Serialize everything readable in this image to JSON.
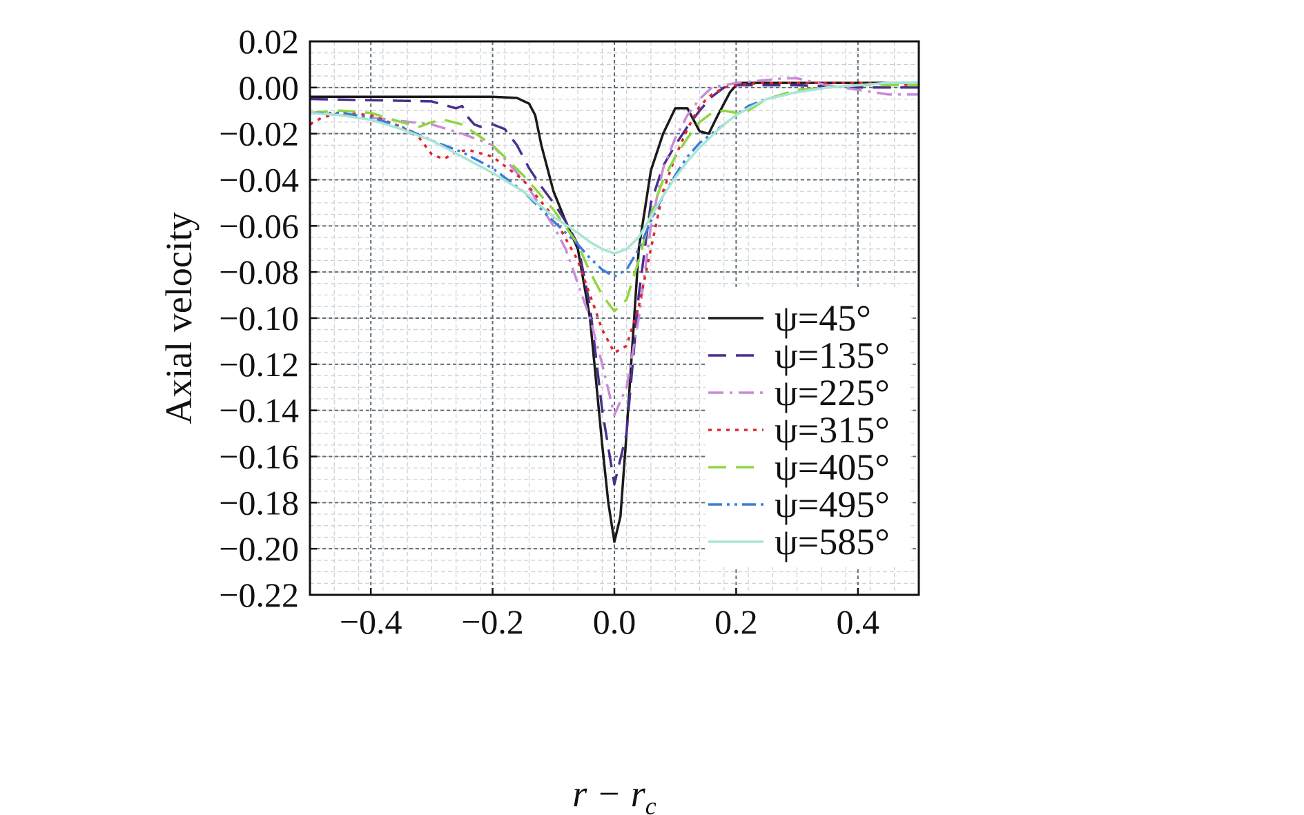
{
  "chart_data": {
    "type": "line",
    "title": "",
    "xlabel": "r − r",
    "xlabel_sub": "c",
    "ylabel": "Axial velocity",
    "xlim": [
      -0.5,
      0.5
    ],
    "ylim": [
      -0.22,
      0.02
    ],
    "grid": true,
    "minor_grid": true,
    "legend_position": "lower-right",
    "xticks": [
      -0.4,
      -0.2,
      0.0,
      0.2,
      0.4
    ],
    "xtick_labels": [
      "−0.4",
      "−0.2",
      "0.0",
      "0.2",
      "0.4"
    ],
    "yticks": [
      0.02,
      0.0,
      -0.02,
      -0.04,
      -0.06,
      -0.08,
      -0.1,
      -0.12,
      -0.14,
      -0.16,
      -0.18,
      -0.2,
      -0.22
    ],
    "ytick_labels": [
      "0.02",
      "0.00",
      "−0.02",
      "−0.04",
      "−0.06",
      "−0.08",
      "−0.10",
      "−0.12",
      "−0.14",
      "−0.16",
      "−0.18",
      "−0.20",
      "−0.22"
    ],
    "series": [
      {
        "name": "ψ=45°",
        "color": "#1a1a1a",
        "dash": "solid",
        "x": [
          -0.5,
          -0.3,
          -0.2,
          -0.16,
          -0.14,
          -0.13,
          -0.12,
          -0.1,
          -0.08,
          -0.06,
          -0.04,
          -0.02,
          -0.01,
          0.0,
          0.01,
          0.02,
          0.03,
          0.04,
          0.06,
          0.08,
          0.1,
          0.12,
          0.14,
          0.155,
          0.17,
          0.19,
          0.2,
          0.21,
          0.25,
          0.3,
          0.4,
          0.5
        ],
        "y": [
          -0.004,
          -0.004,
          -0.004,
          -0.0045,
          -0.007,
          -0.012,
          -0.025,
          -0.045,
          -0.058,
          -0.07,
          -0.1,
          -0.155,
          -0.18,
          -0.197,
          -0.186,
          -0.15,
          -0.11,
          -0.07,
          -0.036,
          -0.02,
          -0.009,
          -0.009,
          -0.019,
          -0.02,
          -0.012,
          -0.002,
          0.001,
          0.002,
          0.002,
          0.002,
          0.002,
          0.002
        ]
      },
      {
        "name": "ψ=135°",
        "color": "#4b2f8a",
        "dash": "long",
        "x": [
          -0.5,
          -0.3,
          -0.26,
          -0.25,
          -0.24,
          -0.23,
          -0.22,
          -0.2,
          -0.18,
          -0.16,
          -0.14,
          -0.12,
          -0.1,
          -0.08,
          -0.06,
          -0.04,
          -0.02,
          0.0,
          0.02,
          0.04,
          0.06,
          0.08,
          0.1,
          0.12,
          0.14,
          0.16,
          0.18,
          0.2,
          0.25,
          0.3,
          0.4,
          0.5
        ],
        "y": [
          -0.005,
          -0.006,
          -0.009,
          -0.008,
          -0.013,
          -0.016,
          -0.017,
          -0.016,
          -0.018,
          -0.025,
          -0.035,
          -0.043,
          -0.05,
          -0.058,
          -0.068,
          -0.095,
          -0.14,
          -0.172,
          -0.15,
          -0.09,
          -0.05,
          -0.034,
          -0.025,
          -0.017,
          -0.01,
          -0.004,
          0.0,
          0.001,
          0.001,
          0.001,
          0.0,
          0.0
        ]
      },
      {
        "name": "ψ=225°",
        "color": "#c98ad9",
        "dash": "dashdot",
        "x": [
          -0.5,
          -0.4,
          -0.3,
          -0.25,
          -0.2,
          -0.15,
          -0.1,
          -0.08,
          -0.06,
          -0.04,
          -0.02,
          0.0,
          0.02,
          0.04,
          0.06,
          0.08,
          0.1,
          0.12,
          0.14,
          0.16,
          0.2,
          0.24,
          0.28,
          0.3,
          0.35,
          0.4,
          0.45,
          0.5
        ],
        "y": [
          -0.011,
          -0.013,
          -0.016,
          -0.02,
          -0.025,
          -0.04,
          -0.06,
          -0.07,
          -0.085,
          -0.1,
          -0.12,
          -0.142,
          -0.13,
          -0.1,
          -0.06,
          -0.035,
          -0.022,
          -0.012,
          -0.005,
          0.0,
          0.002,
          0.003,
          0.004,
          0.004,
          0.001,
          -0.001,
          -0.003,
          -0.003
        ]
      },
      {
        "name": "ψ=315°",
        "color": "#e0262b",
        "dash": "dotted",
        "x": [
          -0.5,
          -0.48,
          -0.45,
          -0.4,
          -0.35,
          -0.32,
          -0.3,
          -0.28,
          -0.26,
          -0.24,
          -0.2,
          -0.15,
          -0.1,
          -0.06,
          -0.04,
          -0.02,
          0.0,
          0.02,
          0.04,
          0.06,
          0.08,
          0.1,
          0.12,
          0.14,
          0.16,
          0.18,
          0.2,
          0.24,
          0.28,
          0.3,
          0.4,
          0.5
        ],
        "y": [
          -0.016,
          -0.013,
          -0.011,
          -0.012,
          -0.017,
          -0.022,
          -0.029,
          -0.031,
          -0.028,
          -0.027,
          -0.03,
          -0.04,
          -0.056,
          -0.075,
          -0.09,
          -0.105,
          -0.115,
          -0.112,
          -0.095,
          -0.07,
          -0.045,
          -0.03,
          -0.018,
          -0.008,
          -0.003,
          0.0,
          0.001,
          0.002,
          0.002,
          0.002,
          0.002,
          0.001
        ]
      },
      {
        "name": "ψ=405°",
        "color": "#8fd63f",
        "dash": "long",
        "x": [
          -0.5,
          -0.45,
          -0.4,
          -0.35,
          -0.32,
          -0.3,
          -0.28,
          -0.25,
          -0.2,
          -0.15,
          -0.1,
          -0.06,
          -0.04,
          -0.02,
          0.0,
          0.02,
          0.04,
          0.06,
          0.08,
          0.1,
          0.12,
          0.14,
          0.16,
          0.18,
          0.2,
          0.22,
          0.25,
          0.3,
          0.35,
          0.4,
          0.5
        ],
        "y": [
          -0.011,
          -0.01,
          -0.011,
          -0.015,
          -0.017,
          -0.015,
          -0.014,
          -0.016,
          -0.025,
          -0.038,
          -0.053,
          -0.068,
          -0.08,
          -0.09,
          -0.097,
          -0.092,
          -0.075,
          -0.055,
          -0.04,
          -0.03,
          -0.022,
          -0.015,
          -0.011,
          -0.01,
          -0.011,
          -0.01,
          -0.005,
          -0.001,
          0.0,
          0.001,
          0.001
        ]
      },
      {
        "name": "ψ=495°",
        "color": "#3d7dd8",
        "dash": "dashdotdot",
        "x": [
          -0.5,
          -0.45,
          -0.4,
          -0.35,
          -0.3,
          -0.25,
          -0.2,
          -0.15,
          -0.1,
          -0.06,
          -0.04,
          -0.02,
          0.0,
          0.02,
          0.04,
          0.06,
          0.08,
          0.1,
          0.12,
          0.14,
          0.16,
          0.18,
          0.2,
          0.22,
          0.25,
          0.3,
          0.35,
          0.4,
          0.45,
          0.5
        ],
        "y": [
          -0.011,
          -0.011,
          -0.013,
          -0.017,
          -0.023,
          -0.028,
          -0.035,
          -0.045,
          -0.058,
          -0.068,
          -0.074,
          -0.079,
          -0.082,
          -0.079,
          -0.07,
          -0.058,
          -0.047,
          -0.038,
          -0.03,
          -0.024,
          -0.02,
          -0.016,
          -0.012,
          -0.008,
          -0.005,
          -0.002,
          0.0,
          0.001,
          0.002,
          0.002
        ]
      },
      {
        "name": "ψ=585°",
        "color": "#a8e6d4",
        "dash": "solid",
        "x": [
          -0.5,
          -0.45,
          -0.4,
          -0.35,
          -0.3,
          -0.25,
          -0.2,
          -0.15,
          -0.1,
          -0.06,
          -0.04,
          -0.02,
          0.0,
          0.02,
          0.04,
          0.06,
          0.08,
          0.1,
          0.12,
          0.14,
          0.16,
          0.18,
          0.2,
          0.22,
          0.25,
          0.3,
          0.35,
          0.4,
          0.45,
          0.5
        ],
        "y": [
          -0.011,
          -0.012,
          -0.014,
          -0.018,
          -0.023,
          -0.03,
          -0.037,
          -0.045,
          -0.056,
          -0.063,
          -0.067,
          -0.07,
          -0.072,
          -0.07,
          -0.065,
          -0.056,
          -0.047,
          -0.039,
          -0.032,
          -0.026,
          -0.021,
          -0.016,
          -0.012,
          -0.009,
          -0.005,
          -0.002,
          0.0,
          0.001,
          0.002,
          0.002
        ]
      }
    ]
  }
}
